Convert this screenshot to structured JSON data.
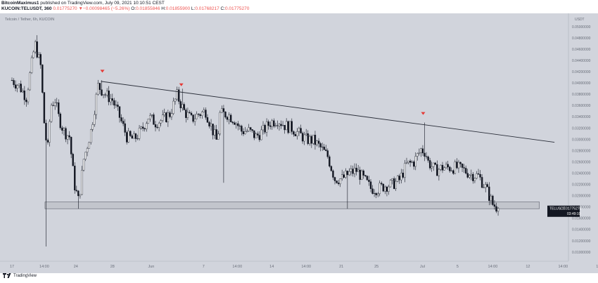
{
  "header": {
    "publisher": "BitcoinMaximus1",
    "published_text": " published on TradingView.com, July 09, 2021 10:10:51 CEST",
    "symbol": "KUCOIN:TELUSDT, 360",
    "last_price": "0.01775270",
    "change_arrow": "▼",
    "change": "−0.00098465 (−5.26%)",
    "open_label": "O:",
    "open": "0.01855846",
    "high_label": "H:",
    "high": "0.01855900",
    "low_label": "L:",
    "low": "0.01768217",
    "close_label": "C:",
    "close": "0.01775270"
  },
  "chart_legend": "Telcoin / Tether, 6h, KUCOIN",
  "price_axis": {
    "currency": "USDT",
    "ticks": [
      "0.05200000",
      "0.05000000",
      "0.04800000",
      "0.04600000",
      "0.04400000",
      "0.04200000",
      "0.04000000",
      "0.03800000",
      "0.03600000",
      "0.03400000",
      "0.03200000",
      "0.03000000",
      "0.02800000",
      "0.02600000",
      "0.02400000",
      "0.02200000",
      "0.02000000",
      "0.01800000",
      "0.01600000",
      "0.01400000",
      "0.01200000",
      "0.01000000"
    ]
  },
  "time_axis": {
    "ticks": [
      "17",
      "14:00",
      "24",
      "28",
      "Jun",
      "7",
      "14:00",
      "14",
      "14:00",
      "21",
      "25",
      "Jul",
      "5",
      "14:00",
      "12",
      "14:00",
      "19"
    ]
  },
  "price_label": {
    "symbol": "TELUSDT",
    "price": "0.01775270",
    "countdown": "03:49:10"
  },
  "footer": {
    "brand": "TradingView"
  },
  "colors": {
    "plot_bg": "#d1d4dc",
    "candle": "#131722",
    "trendline": "#2a2e39",
    "arrow": "#e53935",
    "support_zone": "#c2c5cc",
    "change_negative": "#ef5350"
  },
  "chart_data": {
    "type": "candlestick",
    "y_min": 0.009,
    "y_max": 0.053,
    "x_ticks": [
      {
        "label": "17",
        "t": 0
      },
      {
        "label": "14:00",
        "t": 4.5
      },
      {
        "label": "24",
        "t": 8.9
      },
      {
        "label": "28",
        "t": 14
      },
      {
        "label": "Jun",
        "t": 19.4
      },
      {
        "label": "7",
        "t": 26.7
      },
      {
        "label": "14:00",
        "t": 31.4
      },
      {
        "label": "14",
        "t": 36.2
      },
      {
        "label": "14:00",
        "t": 41
      },
      {
        "label": "21",
        "t": 45.9
      },
      {
        "label": "25",
        "t": 50.8
      },
      {
        "label": "Jul",
        "t": 57.2
      },
      {
        "label": "5",
        "t": 62.1
      },
      {
        "label": "14:00",
        "t": 67
      },
      {
        "label": "12",
        "t": 71.9
      },
      {
        "label": "14:00",
        "t": 76.8
      },
      {
        "label": "19",
        "t": 81.7
      }
    ],
    "control_points": [
      [
        0,
        0.0405
      ],
      [
        1,
        0.0395
      ],
      [
        2,
        0.0375
      ],
      [
        3.2,
        0.047
      ],
      [
        4,
        0.043
      ],
      [
        4.6,
        0.031
      ],
      [
        5,
        0.0285
      ],
      [
        5.4,
        0.036
      ],
      [
        6,
        0.037
      ],
      [
        6.5,
        0.034
      ],
      [
        7.2,
        0.0315
      ],
      [
        8,
        0.0305
      ],
      [
        8.7,
        0.022
      ],
      [
        9.3,
        0.019
      ],
      [
        10,
        0.0265
      ],
      [
        11,
        0.0315
      ],
      [
        12,
        0.0395
      ],
      [
        13,
        0.038
      ],
      [
        14,
        0.037
      ],
      [
        15,
        0.034
      ],
      [
        16,
        0.0305
      ],
      [
        17,
        0.03
      ],
      [
        18,
        0.0315
      ],
      [
        19,
        0.034
      ],
      [
        20,
        0.033
      ],
      [
        21,
        0.0335
      ],
      [
        22,
        0.0345
      ],
      [
        23,
        0.0378
      ],
      [
        24,
        0.035
      ],
      [
        25,
        0.0335
      ],
      [
        26,
        0.0345
      ],
      [
        27,
        0.035
      ],
      [
        28,
        0.0315
      ],
      [
        28.6,
        0.0295
      ],
      [
        29,
        0.0345
      ],
      [
        30,
        0.0345
      ],
      [
        31,
        0.0335
      ],
      [
        32,
        0.0315
      ],
      [
        33,
        0.0315
      ],
      [
        34,
        0.0305
      ],
      [
        35,
        0.0315
      ],
      [
        36,
        0.033
      ],
      [
        37,
        0.0335
      ],
      [
        38,
        0.0325
      ],
      [
        39,
        0.032
      ],
      [
        40,
        0.031
      ],
      [
        41,
        0.03
      ],
      [
        42,
        0.0298
      ],
      [
        43,
        0.0285
      ],
      [
        44,
        0.027
      ],
      [
        45,
        0.023
      ],
      [
        46,
        0.023
      ],
      [
        47,
        0.024
      ],
      [
        48,
        0.0245
      ],
      [
        49,
        0.023
      ],
      [
        50,
        0.0213
      ],
      [
        51,
        0.0212
      ],
      [
        52,
        0.0218
      ],
      [
        53,
        0.022
      ],
      [
        54,
        0.0228
      ],
      [
        55,
        0.0255
      ],
      [
        56,
        0.026
      ],
      [
        57,
        0.0282
      ],
      [
        57.6,
        0.0278
      ],
      [
        58,
        0.026
      ],
      [
        59,
        0.0245
      ],
      [
        60,
        0.025
      ],
      [
        61,
        0.025
      ],
      [
        62,
        0.025
      ],
      [
        63,
        0.0245
      ],
      [
        64,
        0.0238
      ],
      [
        65,
        0.0235
      ],
      [
        66,
        0.0215
      ],
      [
        67,
        0.0185
      ],
      [
        67.8,
        0.01775
      ]
    ],
    "spikes": [
      {
        "t": 3.5,
        "high": 0.0485,
        "low": null
      },
      {
        "t": 4.85,
        "high": null,
        "low": 0.011
      },
      {
        "t": 9.3,
        "high": null,
        "low": 0.0177
      },
      {
        "t": 12.4,
        "high": 0.0405,
        "low": null
      },
      {
        "t": 23.7,
        "high": 0.039,
        "low": null
      },
      {
        "t": 29.4,
        "high": null,
        "low": 0.0223
      },
      {
        "t": 46.8,
        "high": null,
        "low": 0.0177
      },
      {
        "t": 57.4,
        "high": 0.033,
        "low": null
      }
    ],
    "trendline": [
      [
        12.4,
        0.0403
      ],
      [
        75.6,
        0.0295
      ]
    ],
    "support_zone": {
      "t_start": 4.6,
      "t_end": 73.5,
      "y_top": 0.0189,
      "y_bottom": 0.0177
    },
    "pivot_arrows": [
      {
        "t": 12.6,
        "y": 0.0421
      },
      {
        "t": 23.6,
        "y": 0.0397
      },
      {
        "t": 57.3,
        "y": 0.0346
      }
    ],
    "last_price": 0.0177527
  }
}
